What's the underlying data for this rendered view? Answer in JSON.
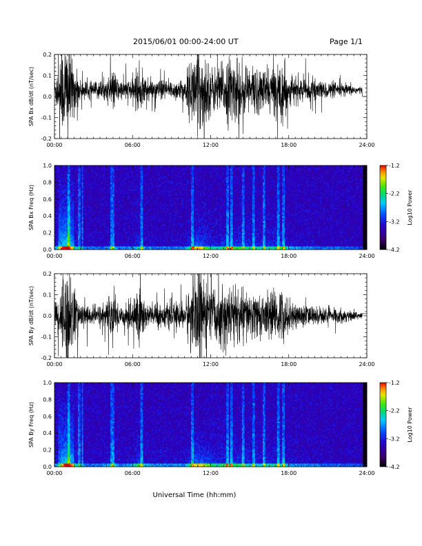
{
  "header": {
    "title": "2015/06/01  00:00-24:00 UT",
    "page": "Page 1/1"
  },
  "chart_data": [
    {
      "type": "line",
      "ylabel": "SPA Bx dB/dt (nT/sec)",
      "xlim": [
        "00:00",
        "24:00"
      ],
      "ylim": [
        -0.2,
        0.2
      ],
      "x_ticks": [
        "00:00",
        "06:00",
        "12:00",
        "18:00",
        "24:00"
      ],
      "y_ticks": [
        "-0.2",
        "-0.1",
        "0.0",
        "0.1",
        "0.2"
      ],
      "envelope": {
        "hour": [
          0,
          0.5,
          1,
          1.5,
          2,
          3,
          4,
          4.5,
          5,
          6,
          6.5,
          7,
          8,
          9,
          10,
          10.5,
          11,
          11.5,
          12,
          12.5,
          13,
          13.5,
          14,
          15,
          16,
          17,
          17.5,
          18,
          19,
          20,
          21,
          22,
          23,
          23.7
        ],
        "amplitude": [
          0.05,
          0.16,
          0.25,
          0.1,
          0.04,
          0.035,
          0.04,
          0.09,
          0.04,
          0.05,
          0.11,
          0.05,
          0.04,
          0.04,
          0.05,
          0.13,
          0.2,
          0.16,
          0.1,
          0.09,
          0.12,
          0.14,
          0.13,
          0.11,
          0.09,
          0.1,
          0.14,
          0.06,
          0.05,
          0.04,
          0.035,
          0.03,
          0.02,
          0.015
        ]
      }
    },
    {
      "type": "heatmap",
      "ylabel": "SPA Bx Freq (Hz)",
      "xlim": [
        "00:00",
        "24:00"
      ],
      "ylim": [
        0.0,
        1.0
      ],
      "x_ticks": [
        "00:00",
        "06:00",
        "12:00",
        "18:00",
        "24:00"
      ],
      "y_ticks": [
        "0.0",
        "0.2",
        "0.4",
        "0.6",
        "0.8",
        "1.0"
      ],
      "colorbar": {
        "label": "Log10 Power",
        "ticks": [
          "-1.2",
          "-2.2",
          "-3.2",
          "-4.2"
        ],
        "range": [
          -4.2,
          -1.2
        ]
      }
    },
    {
      "type": "line",
      "ylabel": "SPA By dB/dt (nT/sec)",
      "xlim": [
        "00:00",
        "24:00"
      ],
      "ylim": [
        -0.2,
        0.2
      ],
      "x_ticks": [
        "00:00",
        "06:00",
        "12:00",
        "18:00",
        "24:00"
      ],
      "y_ticks": [
        "-0.2",
        "-0.1",
        "0.0",
        "0.1",
        "0.2"
      ],
      "envelope": {
        "hour": [
          0,
          0.5,
          1,
          1.5,
          2,
          3,
          4,
          4.5,
          5,
          6,
          6.5,
          7,
          8,
          9,
          10,
          10.5,
          11,
          11.5,
          12,
          12.5,
          13,
          13.5,
          14,
          15,
          16,
          17,
          17.5,
          18,
          19,
          20,
          21,
          22,
          23,
          23.7
        ],
        "amplitude": [
          0.05,
          0.12,
          0.25,
          0.12,
          0.05,
          0.04,
          0.06,
          0.1,
          0.05,
          0.06,
          0.16,
          0.06,
          0.05,
          0.05,
          0.06,
          0.14,
          0.2,
          0.18,
          0.14,
          0.1,
          0.13,
          0.14,
          0.12,
          0.1,
          0.09,
          0.1,
          0.12,
          0.06,
          0.05,
          0.04,
          0.035,
          0.03,
          0.02,
          0.015
        ]
      }
    },
    {
      "type": "heatmap",
      "ylabel": "SPA By Freq (Hz)",
      "xlim": [
        "00:00",
        "24:00"
      ],
      "ylim": [
        0.0,
        1.0
      ],
      "x_ticks": [
        "00:00",
        "06:00",
        "12:00",
        "18:00",
        "24:00"
      ],
      "y_ticks": [
        "0.0",
        "0.2",
        "0.4",
        "0.6",
        "0.8",
        "1.0"
      ],
      "colorbar": {
        "label": "Log10 Power",
        "ticks": [
          "-1.2",
          "-2.2",
          "-3.2",
          "-4.2"
        ],
        "range": [
          -4.2,
          -1.2
        ]
      }
    }
  ],
  "xlabel": "Universal Time (hh:mm)"
}
